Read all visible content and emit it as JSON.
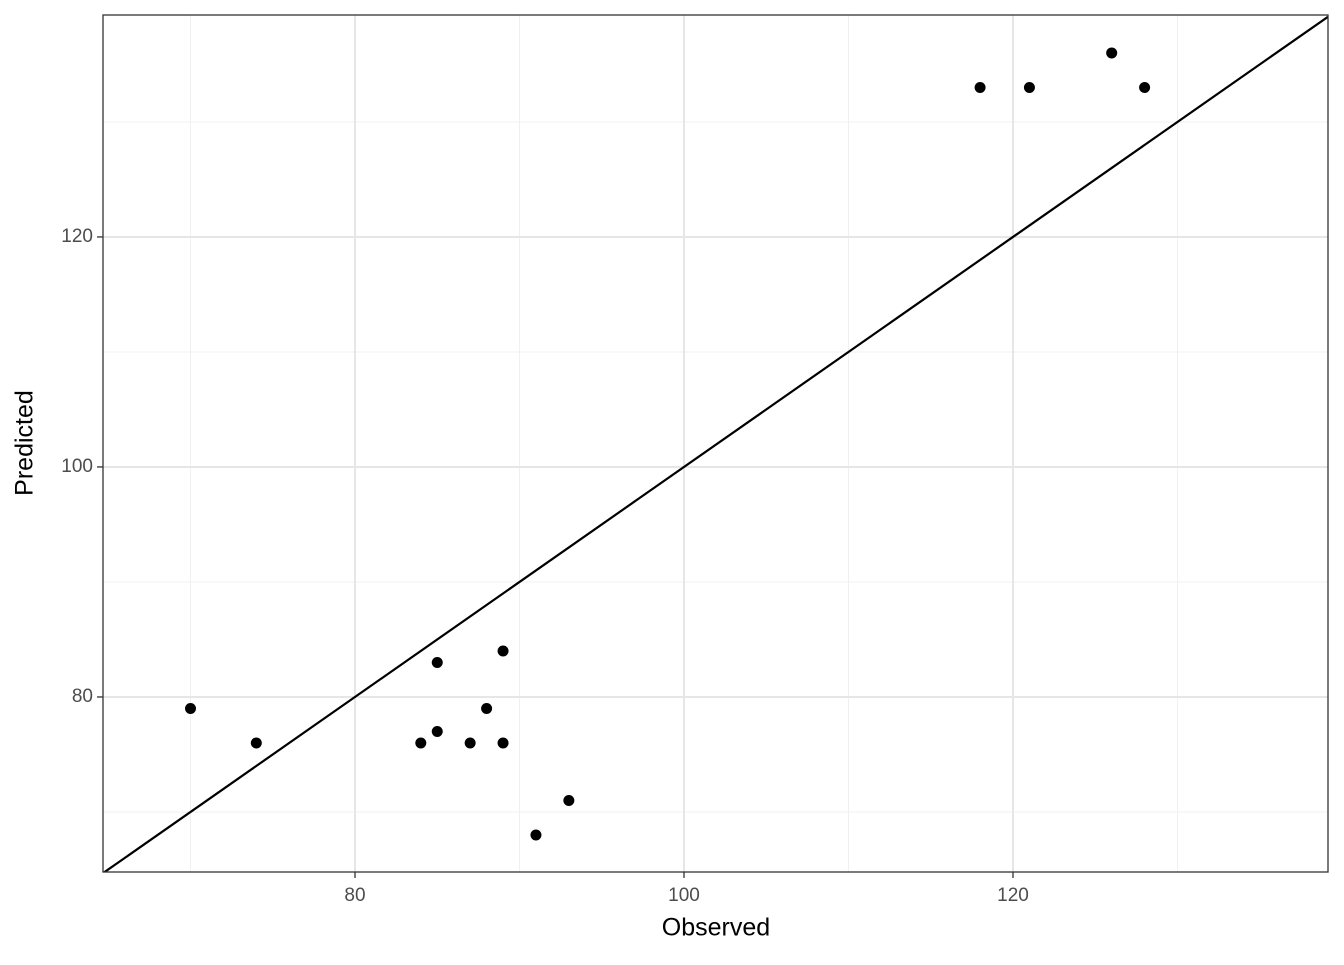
{
  "chart_data": {
    "type": "scatter",
    "x_label": "Observed",
    "y_label": "Predicted",
    "x": [
      70,
      74,
      84,
      85,
      85,
      87,
      88,
      89,
      89,
      91,
      93,
      118,
      121,
      126,
      128
    ],
    "series": [
      {
        "color": "#000000",
        "values": [
          79,
          76,
          76,
          83,
          77,
          76,
          79,
          84,
          76,
          68,
          71,
          133,
          133,
          136,
          133
        ]
      }
    ],
    "xlim": [
      64.68,
      139.15
    ],
    "ylim": [
      64.78,
      139.3
    ],
    "xticks": [
      80,
      100,
      120
    ],
    "yticks": [
      80,
      100,
      120
    ],
    "x_minor_grid": [
      70,
      90,
      110,
      130
    ],
    "y_minor_grid": [
      70,
      90,
      110,
      130
    ],
    "grid": true,
    "reference_line": {
      "slope": 1,
      "intercept": 0
    }
  }
}
